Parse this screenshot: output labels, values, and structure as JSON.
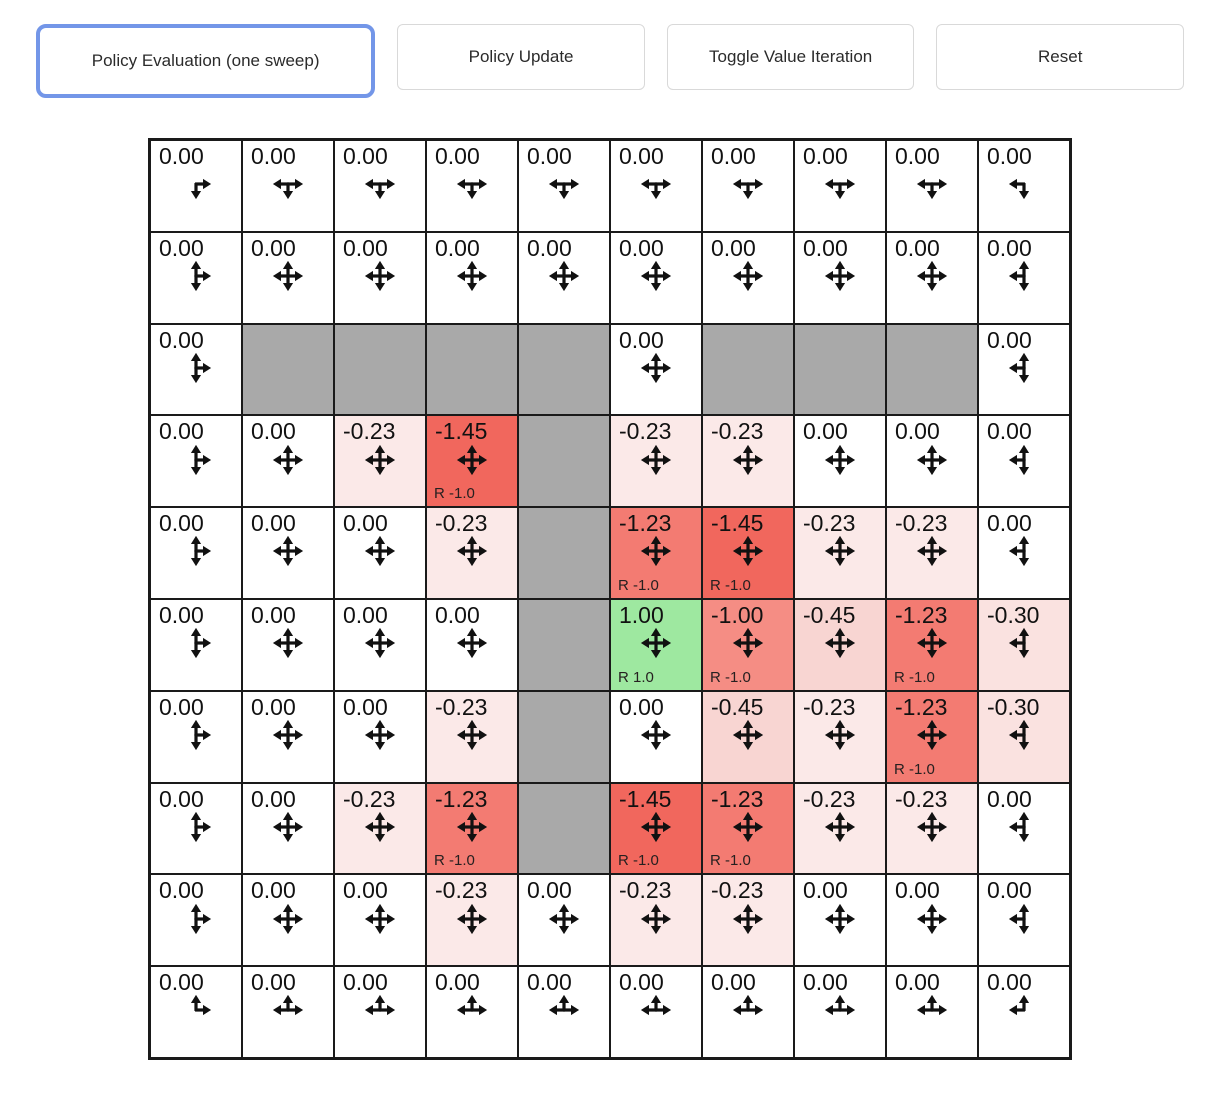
{
  "toolbar": {
    "active_border_color": "#7396e8",
    "buttons": [
      {
        "label": "Policy Evaluation (one sweep)",
        "active": true
      },
      {
        "label": "Policy Update",
        "active": false
      },
      {
        "label": "Toggle Value Iteration",
        "active": false
      },
      {
        "label": "Reset",
        "active": false
      }
    ]
  },
  "colors": {
    "wall": "#a9a9a9",
    "grid_line": "#1a1a1a",
    "value_positive_1_00": "#9ee8a0",
    "value_neg_0_23": "#fbe9e8",
    "value_neg_0_30": "#fae2e0",
    "value_neg_0_45": "#f8d5d2",
    "value_neg_1_00": "#f58d84",
    "value_neg_1_23": "#f37b72",
    "value_neg_1_45": "#f1675d"
  },
  "grid": {
    "rows": 10,
    "cols": 10,
    "cells": [
      [
        {
          "v": "0.00",
          "bg": "#ffffff",
          "arrows": [
            "down",
            "right"
          ]
        },
        {
          "v": "0.00",
          "bg": "#ffffff",
          "arrows": [
            "left",
            "down",
            "right"
          ]
        },
        {
          "v": "0.00",
          "bg": "#ffffff",
          "arrows": [
            "left",
            "down",
            "right"
          ]
        },
        {
          "v": "0.00",
          "bg": "#ffffff",
          "arrows": [
            "left",
            "down",
            "right"
          ]
        },
        {
          "v": "0.00",
          "bg": "#ffffff",
          "arrows": [
            "left",
            "down",
            "right"
          ]
        },
        {
          "v": "0.00",
          "bg": "#ffffff",
          "arrows": [
            "left",
            "down",
            "right"
          ]
        },
        {
          "v": "0.00",
          "bg": "#ffffff",
          "arrows": [
            "left",
            "down",
            "right"
          ]
        },
        {
          "v": "0.00",
          "bg": "#ffffff",
          "arrows": [
            "left",
            "down",
            "right"
          ]
        },
        {
          "v": "0.00",
          "bg": "#ffffff",
          "arrows": [
            "left",
            "down",
            "right"
          ]
        },
        {
          "v": "0.00",
          "bg": "#ffffff",
          "arrows": [
            "left",
            "down"
          ]
        }
      ],
      [
        {
          "v": "0.00",
          "bg": "#ffffff",
          "arrows": [
            "up",
            "down",
            "right"
          ]
        },
        {
          "v": "0.00",
          "bg": "#ffffff",
          "arrows": [
            "up",
            "down",
            "left",
            "right"
          ]
        },
        {
          "v": "0.00",
          "bg": "#ffffff",
          "arrows": [
            "up",
            "down",
            "left",
            "right"
          ]
        },
        {
          "v": "0.00",
          "bg": "#ffffff",
          "arrows": [
            "up",
            "down",
            "left",
            "right"
          ]
        },
        {
          "v": "0.00",
          "bg": "#ffffff",
          "arrows": [
            "up",
            "down",
            "left",
            "right"
          ]
        },
        {
          "v": "0.00",
          "bg": "#ffffff",
          "arrows": [
            "up",
            "down",
            "left",
            "right"
          ]
        },
        {
          "v": "0.00",
          "bg": "#ffffff",
          "arrows": [
            "up",
            "down",
            "left",
            "right"
          ]
        },
        {
          "v": "0.00",
          "bg": "#ffffff",
          "arrows": [
            "up",
            "down",
            "left",
            "right"
          ]
        },
        {
          "v": "0.00",
          "bg": "#ffffff",
          "arrows": [
            "up",
            "down",
            "left",
            "right"
          ]
        },
        {
          "v": "0.00",
          "bg": "#ffffff",
          "arrows": [
            "up",
            "down",
            "left"
          ]
        }
      ],
      [
        {
          "v": "0.00",
          "bg": "#ffffff",
          "arrows": [
            "up",
            "down",
            "right"
          ]
        },
        {
          "wall": true
        },
        {
          "wall": true
        },
        {
          "wall": true
        },
        {
          "wall": true
        },
        {
          "v": "0.00",
          "bg": "#ffffff",
          "arrows": [
            "up",
            "down",
            "left",
            "right"
          ]
        },
        {
          "wall": true
        },
        {
          "wall": true
        },
        {
          "wall": true
        },
        {
          "v": "0.00",
          "bg": "#ffffff",
          "arrows": [
            "up",
            "down",
            "left"
          ]
        }
      ],
      [
        {
          "v": "0.00",
          "bg": "#ffffff",
          "arrows": [
            "up",
            "down",
            "right"
          ]
        },
        {
          "v": "0.00",
          "bg": "#ffffff",
          "arrows": [
            "up",
            "down",
            "left",
            "right"
          ]
        },
        {
          "v": "-0.23",
          "bg": "#fbe9e8",
          "arrows": [
            "up",
            "down",
            "left",
            "right"
          ]
        },
        {
          "v": "-1.45",
          "bg": "#f1675d",
          "arrows": [
            "up",
            "down",
            "left",
            "right"
          ],
          "reward": "R -1.0"
        },
        {
          "wall": true
        },
        {
          "v": "-0.23",
          "bg": "#fbe9e8",
          "arrows": [
            "up",
            "down",
            "left",
            "right"
          ]
        },
        {
          "v": "-0.23",
          "bg": "#fbe9e8",
          "arrows": [
            "up",
            "down",
            "left",
            "right"
          ]
        },
        {
          "v": "0.00",
          "bg": "#ffffff",
          "arrows": [
            "up",
            "down",
            "left",
            "right"
          ]
        },
        {
          "v": "0.00",
          "bg": "#ffffff",
          "arrows": [
            "up",
            "down",
            "left",
            "right"
          ]
        },
        {
          "v": "0.00",
          "bg": "#ffffff",
          "arrows": [
            "up",
            "down",
            "left"
          ]
        }
      ],
      [
        {
          "v": "0.00",
          "bg": "#ffffff",
          "arrows": [
            "up",
            "down",
            "right"
          ]
        },
        {
          "v": "0.00",
          "bg": "#ffffff",
          "arrows": [
            "up",
            "down",
            "left",
            "right"
          ]
        },
        {
          "v": "0.00",
          "bg": "#ffffff",
          "arrows": [
            "up",
            "down",
            "left",
            "right"
          ]
        },
        {
          "v": "-0.23",
          "bg": "#fbe9e8",
          "arrows": [
            "up",
            "down",
            "left",
            "right"
          ]
        },
        {
          "wall": true
        },
        {
          "v": "-1.23",
          "bg": "#f37b72",
          "arrows": [
            "up",
            "down",
            "left",
            "right"
          ],
          "reward": "R -1.0"
        },
        {
          "v": "-1.45",
          "bg": "#f1675d",
          "arrows": [
            "up",
            "down",
            "left",
            "right"
          ],
          "reward": "R -1.0"
        },
        {
          "v": "-0.23",
          "bg": "#fbe9e8",
          "arrows": [
            "up",
            "down",
            "left",
            "right"
          ]
        },
        {
          "v": "-0.23",
          "bg": "#fbe9e8",
          "arrows": [
            "up",
            "down",
            "left",
            "right"
          ]
        },
        {
          "v": "0.00",
          "bg": "#ffffff",
          "arrows": [
            "up",
            "down",
            "left"
          ]
        }
      ],
      [
        {
          "v": "0.00",
          "bg": "#ffffff",
          "arrows": [
            "up",
            "down",
            "right"
          ]
        },
        {
          "v": "0.00",
          "bg": "#ffffff",
          "arrows": [
            "up",
            "down",
            "left",
            "right"
          ]
        },
        {
          "v": "0.00",
          "bg": "#ffffff",
          "arrows": [
            "up",
            "down",
            "left",
            "right"
          ]
        },
        {
          "v": "0.00",
          "bg": "#ffffff",
          "arrows": [
            "up",
            "down",
            "left",
            "right"
          ]
        },
        {
          "wall": true
        },
        {
          "v": "1.00",
          "bg": "#9ee8a0",
          "arrows": [
            "up",
            "down",
            "left",
            "right"
          ],
          "reward": "R 1.0"
        },
        {
          "v": "-1.00",
          "bg": "#f58d84",
          "arrows": [
            "up",
            "down",
            "left",
            "right"
          ],
          "reward": "R -1.0"
        },
        {
          "v": "-0.45",
          "bg": "#f8d5d2",
          "arrows": [
            "up",
            "down",
            "left",
            "right"
          ]
        },
        {
          "v": "-1.23",
          "bg": "#f37b72",
          "arrows": [
            "up",
            "down",
            "left",
            "right"
          ],
          "reward": "R -1.0"
        },
        {
          "v": "-0.30",
          "bg": "#fae2e0",
          "arrows": [
            "up",
            "down",
            "left"
          ]
        }
      ],
      [
        {
          "v": "0.00",
          "bg": "#ffffff",
          "arrows": [
            "up",
            "down",
            "right"
          ]
        },
        {
          "v": "0.00",
          "bg": "#ffffff",
          "arrows": [
            "up",
            "down",
            "left",
            "right"
          ]
        },
        {
          "v": "0.00",
          "bg": "#ffffff",
          "arrows": [
            "up",
            "down",
            "left",
            "right"
          ]
        },
        {
          "v": "-0.23",
          "bg": "#fbe9e8",
          "arrows": [
            "up",
            "down",
            "left",
            "right"
          ]
        },
        {
          "wall": true
        },
        {
          "v": "0.00",
          "bg": "#ffffff",
          "arrows": [
            "up",
            "down",
            "left",
            "right"
          ]
        },
        {
          "v": "-0.45",
          "bg": "#f8d5d2",
          "arrows": [
            "up",
            "down",
            "left",
            "right"
          ]
        },
        {
          "v": "-0.23",
          "bg": "#fbe9e8",
          "arrows": [
            "up",
            "down",
            "left",
            "right"
          ]
        },
        {
          "v": "-1.23",
          "bg": "#f37b72",
          "arrows": [
            "up",
            "down",
            "left",
            "right"
          ],
          "reward": "R -1.0"
        },
        {
          "v": "-0.30",
          "bg": "#fae2e0",
          "arrows": [
            "up",
            "down",
            "left"
          ]
        }
      ],
      [
        {
          "v": "0.00",
          "bg": "#ffffff",
          "arrows": [
            "up",
            "down",
            "right"
          ]
        },
        {
          "v": "0.00",
          "bg": "#ffffff",
          "arrows": [
            "up",
            "down",
            "left",
            "right"
          ]
        },
        {
          "v": "-0.23",
          "bg": "#fbe9e8",
          "arrows": [
            "up",
            "down",
            "left",
            "right"
          ]
        },
        {
          "v": "-1.23",
          "bg": "#f37b72",
          "arrows": [
            "up",
            "down",
            "left",
            "right"
          ],
          "reward": "R -1.0"
        },
        {
          "wall": true
        },
        {
          "v": "-1.45",
          "bg": "#f1675d",
          "arrows": [
            "up",
            "down",
            "left",
            "right"
          ],
          "reward": "R -1.0"
        },
        {
          "v": "-1.23",
          "bg": "#f37b72",
          "arrows": [
            "up",
            "down",
            "left",
            "right"
          ],
          "reward": "R -1.0"
        },
        {
          "v": "-0.23",
          "bg": "#fbe9e8",
          "arrows": [
            "up",
            "down",
            "left",
            "right"
          ]
        },
        {
          "v": "-0.23",
          "bg": "#fbe9e8",
          "arrows": [
            "up",
            "down",
            "left",
            "right"
          ]
        },
        {
          "v": "0.00",
          "bg": "#ffffff",
          "arrows": [
            "up",
            "down",
            "left"
          ]
        }
      ],
      [
        {
          "v": "0.00",
          "bg": "#ffffff",
          "arrows": [
            "up",
            "down",
            "right"
          ]
        },
        {
          "v": "0.00",
          "bg": "#ffffff",
          "arrows": [
            "up",
            "down",
            "left",
            "right"
          ]
        },
        {
          "v": "0.00",
          "bg": "#ffffff",
          "arrows": [
            "up",
            "down",
            "left",
            "right"
          ]
        },
        {
          "v": "-0.23",
          "bg": "#fbe9e8",
          "arrows": [
            "up",
            "down",
            "left",
            "right"
          ]
        },
        {
          "v": "0.00",
          "bg": "#ffffff",
          "arrows": [
            "up",
            "down",
            "left",
            "right"
          ]
        },
        {
          "v": "-0.23",
          "bg": "#fbe9e8",
          "arrows": [
            "up",
            "down",
            "left",
            "right"
          ]
        },
        {
          "v": "-0.23",
          "bg": "#fbe9e8",
          "arrows": [
            "up",
            "down",
            "left",
            "right"
          ]
        },
        {
          "v": "0.00",
          "bg": "#ffffff",
          "arrows": [
            "up",
            "down",
            "left",
            "right"
          ]
        },
        {
          "v": "0.00",
          "bg": "#ffffff",
          "arrows": [
            "up",
            "down",
            "left",
            "right"
          ]
        },
        {
          "v": "0.00",
          "bg": "#ffffff",
          "arrows": [
            "up",
            "down",
            "left"
          ]
        }
      ],
      [
        {
          "v": "0.00",
          "bg": "#ffffff",
          "arrows": [
            "up",
            "right"
          ]
        },
        {
          "v": "0.00",
          "bg": "#ffffff",
          "arrows": [
            "up",
            "left",
            "right"
          ]
        },
        {
          "v": "0.00",
          "bg": "#ffffff",
          "arrows": [
            "up",
            "left",
            "right"
          ]
        },
        {
          "v": "0.00",
          "bg": "#ffffff",
          "arrows": [
            "up",
            "left",
            "right"
          ]
        },
        {
          "v": "0.00",
          "bg": "#ffffff",
          "arrows": [
            "up",
            "left",
            "right"
          ]
        },
        {
          "v": "0.00",
          "bg": "#ffffff",
          "arrows": [
            "up",
            "left",
            "right"
          ]
        },
        {
          "v": "0.00",
          "bg": "#ffffff",
          "arrows": [
            "up",
            "left",
            "right"
          ]
        },
        {
          "v": "0.00",
          "bg": "#ffffff",
          "arrows": [
            "up",
            "left",
            "right"
          ]
        },
        {
          "v": "0.00",
          "bg": "#ffffff",
          "arrows": [
            "up",
            "left",
            "right"
          ]
        },
        {
          "v": "0.00",
          "bg": "#ffffff",
          "arrows": [
            "up",
            "left"
          ]
        }
      ]
    ]
  }
}
